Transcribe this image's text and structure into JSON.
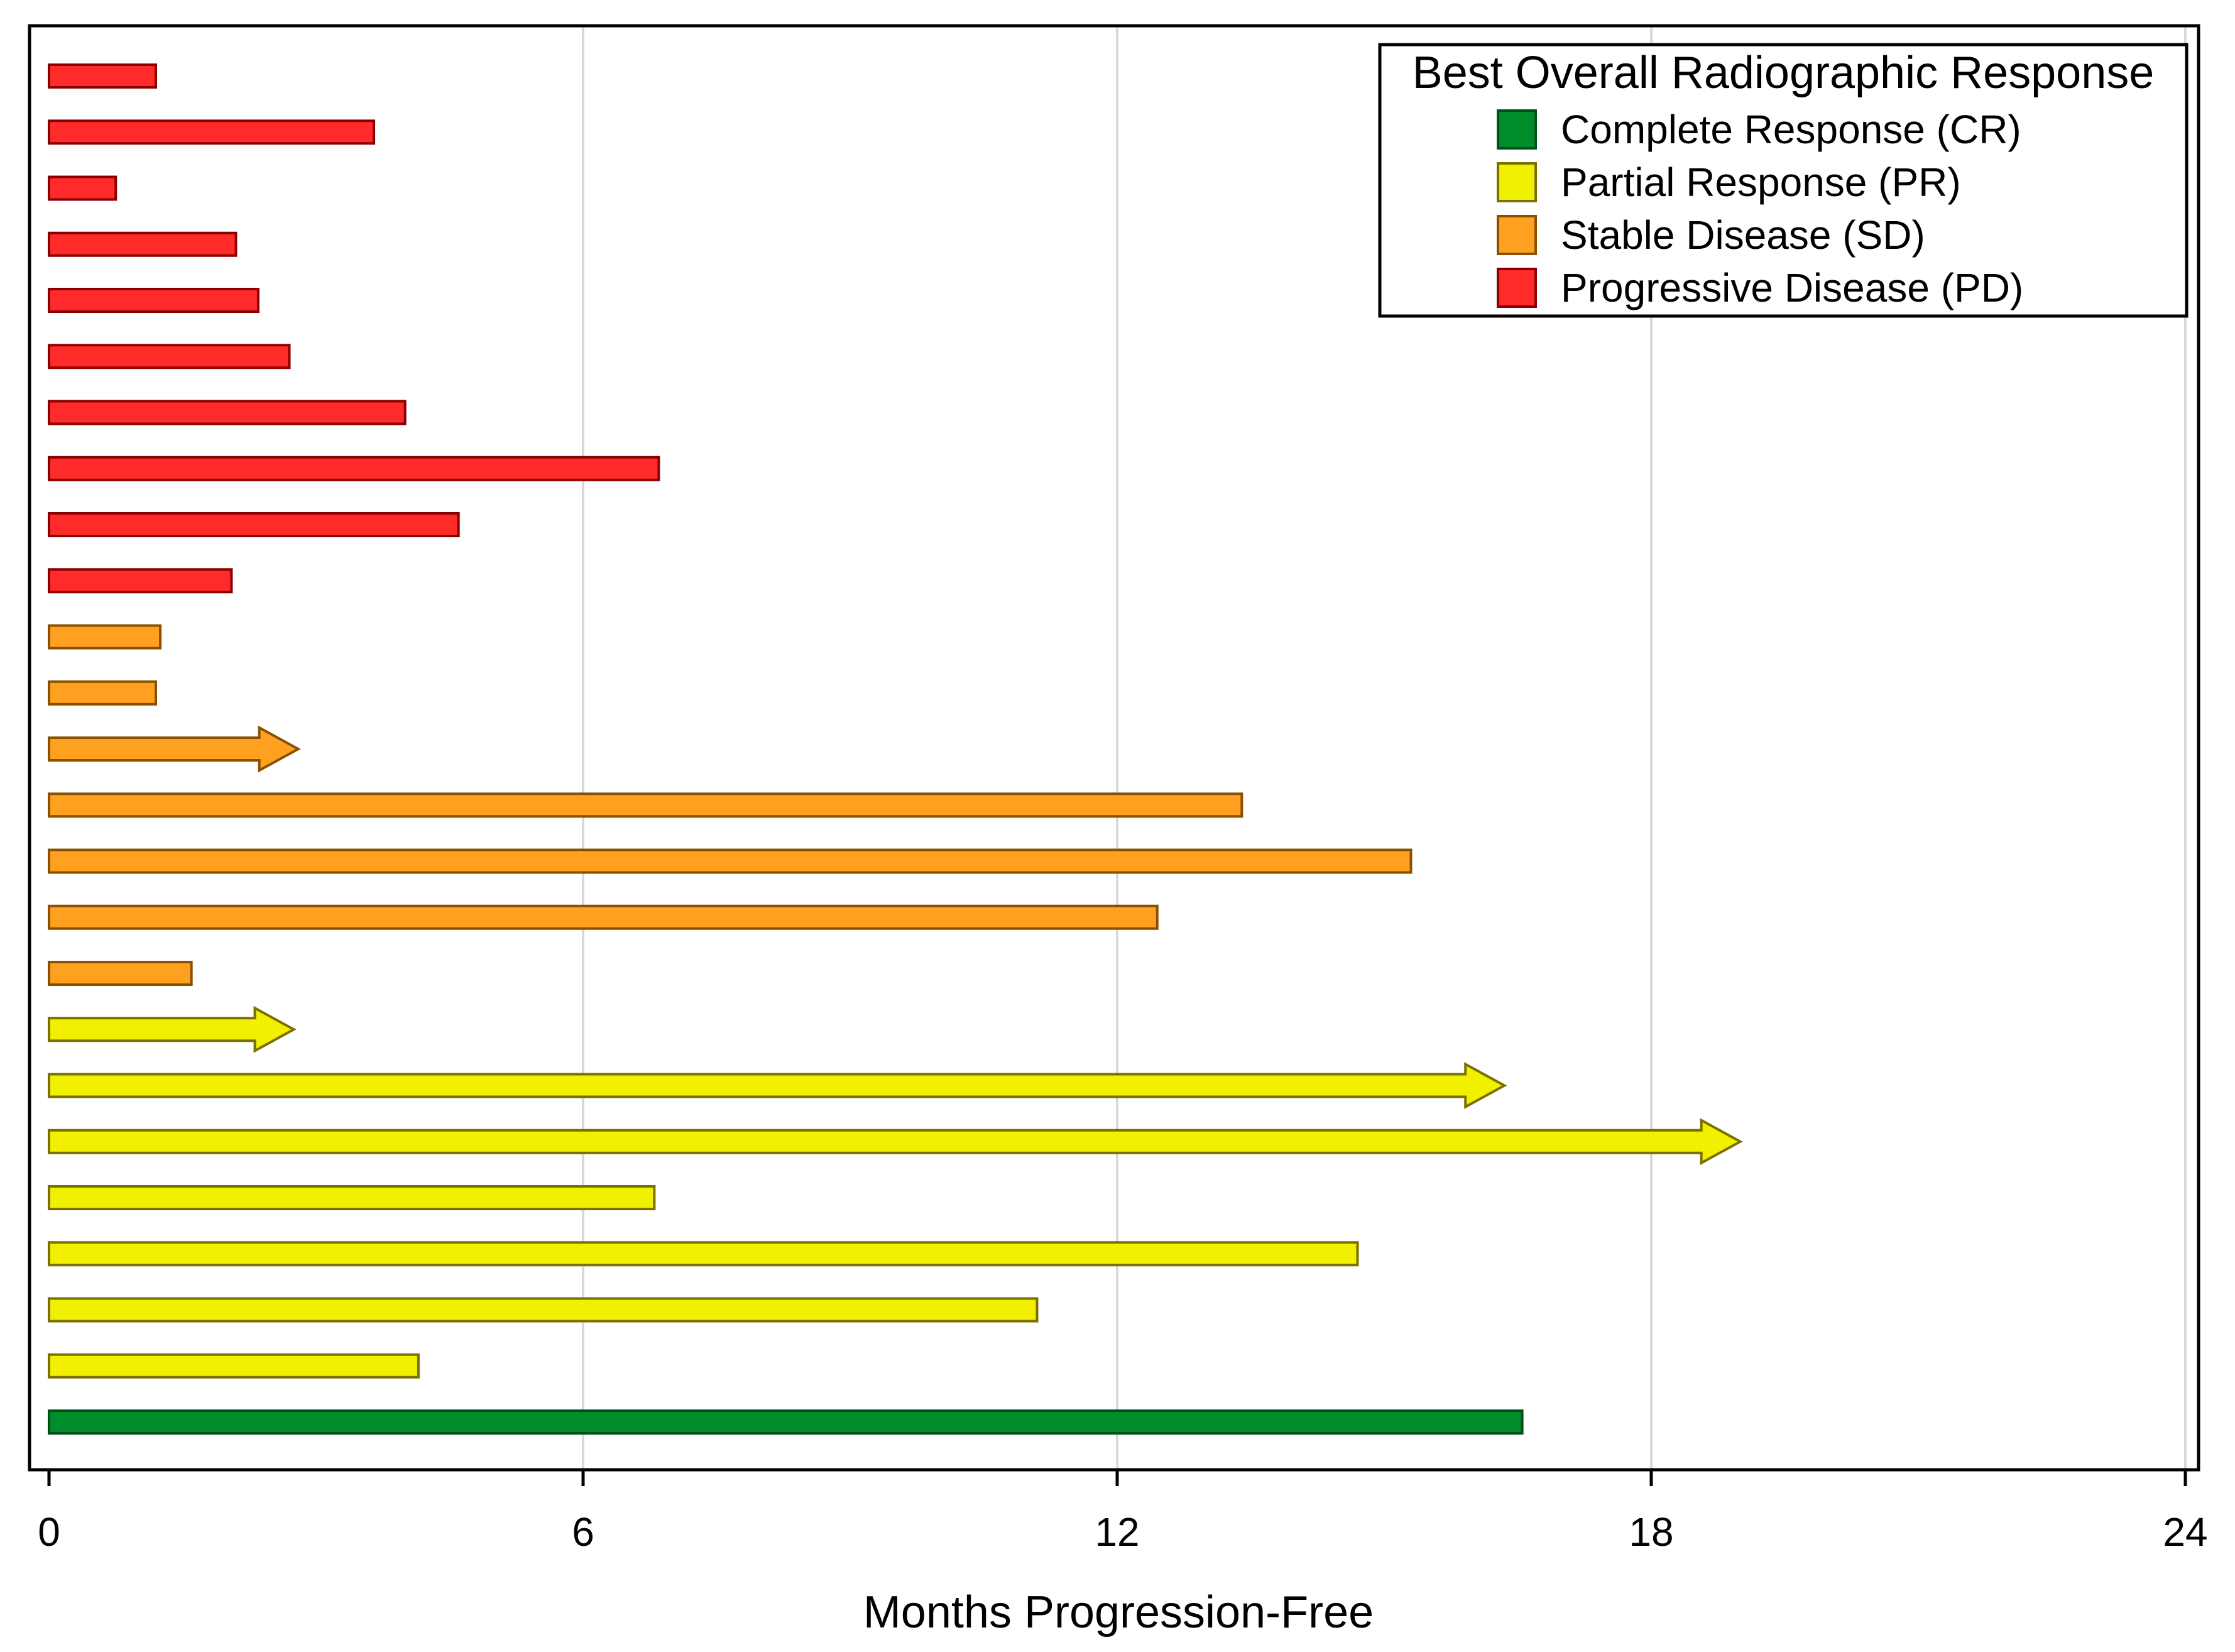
{
  "chart_data": {
    "type": "bar",
    "orientation": "horizontal",
    "title": "",
    "xlabel": "Months Progression-Free",
    "ylabel": "",
    "xlim": [
      0,
      24
    ],
    "xticks": [
      0,
      6,
      12,
      18,
      24
    ],
    "grid": "vertical",
    "legend": {
      "title": "Best Overall Radiographic Response",
      "placement": "top-right",
      "entries": [
        {
          "key": "CR",
          "label": "Complete Response (CR)",
          "color": "#008c2a"
        },
        {
          "key": "PR",
          "label": "Partial Response (PR)",
          "color": "#f0f000"
        },
        {
          "key": "SD",
          "label": "Stable Disease (SD)",
          "color": "#ffa020"
        },
        {
          "key": "PD",
          "label": "Progressive Disease (PD)",
          "color": "#ff2a2a"
        }
      ]
    },
    "bars": [
      {
        "value": 1.2,
        "response": "PD",
        "ongoing": false
      },
      {
        "value": 3.65,
        "response": "PD",
        "ongoing": false
      },
      {
        "value": 0.75,
        "response": "PD",
        "ongoing": false
      },
      {
        "value": 2.1,
        "response": "PD",
        "ongoing": false
      },
      {
        "value": 2.35,
        "response": "PD",
        "ongoing": false
      },
      {
        "value": 2.7,
        "response": "PD",
        "ongoing": false
      },
      {
        "value": 4.0,
        "response": "PD",
        "ongoing": false
      },
      {
        "value": 6.85,
        "response": "PD",
        "ongoing": false
      },
      {
        "value": 4.6,
        "response": "PD",
        "ongoing": false
      },
      {
        "value": 2.05,
        "response": "PD",
        "ongoing": false
      },
      {
        "value": 1.25,
        "response": "SD",
        "ongoing": false
      },
      {
        "value": 1.2,
        "response": "SD",
        "ongoing": false
      },
      {
        "value": 2.8,
        "response": "SD",
        "ongoing": true
      },
      {
        "value": 13.4,
        "response": "SD",
        "ongoing": false
      },
      {
        "value": 15.3,
        "response": "SD",
        "ongoing": false
      },
      {
        "value": 12.45,
        "response": "SD",
        "ongoing": false
      },
      {
        "value": 1.6,
        "response": "SD",
        "ongoing": false
      },
      {
        "value": 2.75,
        "response": "PR",
        "ongoing": true
      },
      {
        "value": 16.35,
        "response": "PR",
        "ongoing": true
      },
      {
        "value": 19.0,
        "response": "PR",
        "ongoing": true
      },
      {
        "value": 6.8,
        "response": "PR",
        "ongoing": false
      },
      {
        "value": 14.7,
        "response": "PR",
        "ongoing": false
      },
      {
        "value": 11.1,
        "response": "PR",
        "ongoing": false
      },
      {
        "value": 4.15,
        "response": "PR",
        "ongoing": false
      },
      {
        "value": 16.55,
        "response": "CR",
        "ongoing": false
      }
    ]
  }
}
